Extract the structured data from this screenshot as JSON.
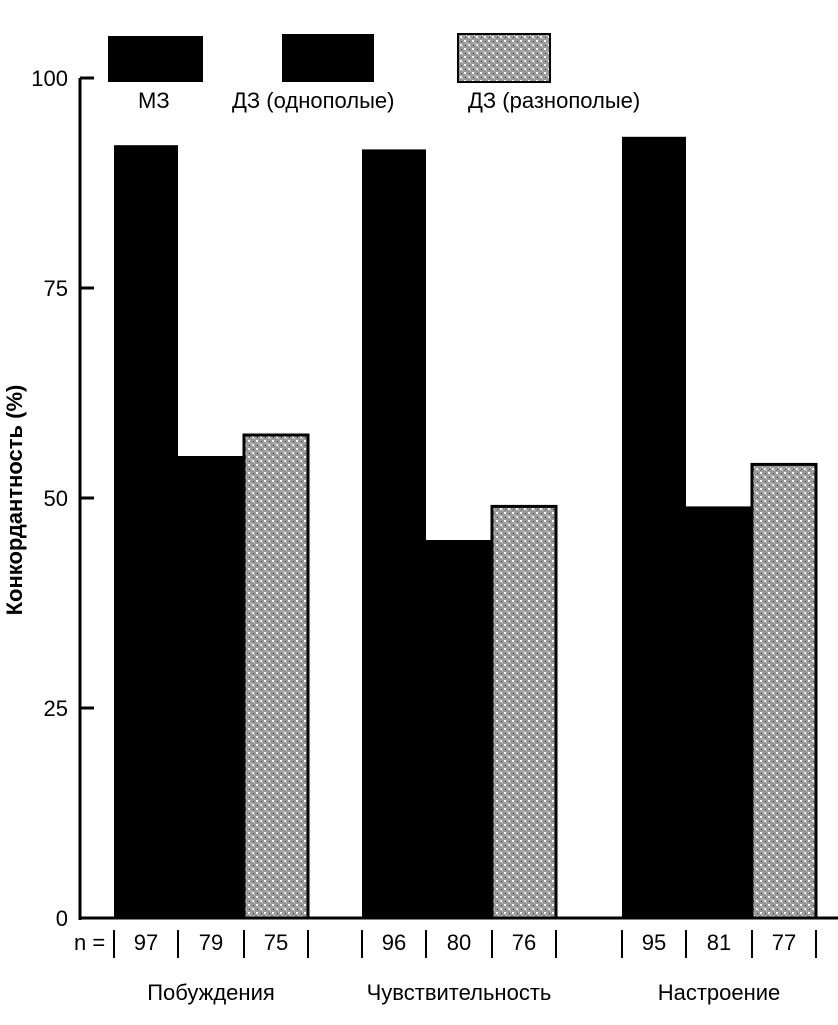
{
  "chart_data": {
    "type": "bar",
    "ylabel": "Конкордантность (%)",
    "ylim": [
      0,
      100
    ],
    "yticks": [
      "0",
      "25",
      "50",
      "75",
      "100"
    ],
    "categories": [
      "Побуждения",
      "Чувствительность",
      "Настроение"
    ],
    "series": [
      {
        "name": "МЗ",
        "values": [
          92,
          91.5,
          93
        ],
        "n": [
          "97",
          "96",
          "95"
        ],
        "color": "#000000",
        "pattern": "solid"
      },
      {
        "name": "ДЗ (однополые)",
        "values": [
          55,
          45,
          49
        ],
        "n": [
          "79",
          "80",
          "81"
        ],
        "color": "#000000",
        "pattern": "solid"
      },
      {
        "name": "ДЗ (разнополые)",
        "values": [
          57.5,
          49,
          54
        ],
        "n": [
          "75",
          "76",
          "77"
        ],
        "color": "#a9a9a9",
        "pattern": "stipple"
      }
    ],
    "n_prefix": "n =",
    "grid": false,
    "legend_position": "top"
  }
}
